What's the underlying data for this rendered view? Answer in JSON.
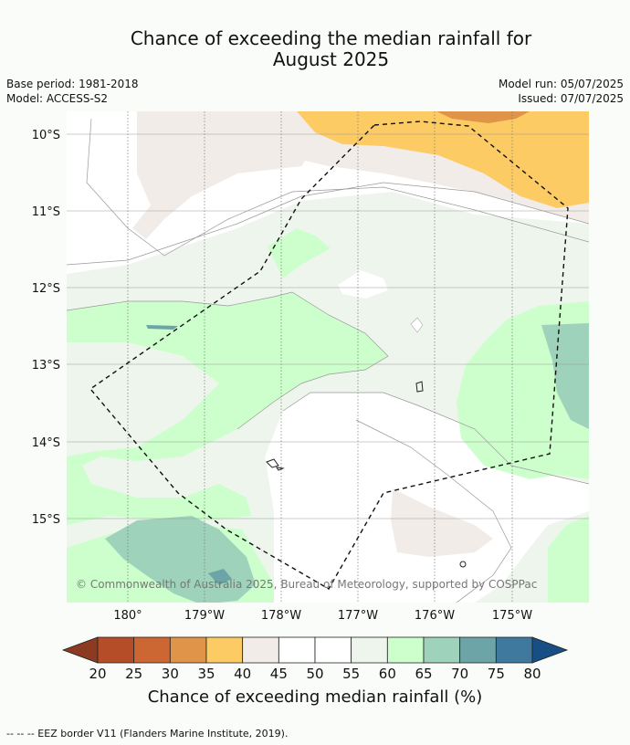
{
  "title_line1": "Chance of exceeding the median rainfall for",
  "title_line2": "August 2025",
  "meta": {
    "base_period": "Base period: 1981-2018",
    "model": "Model: ACCESS-S2",
    "model_run": "Model run: 05/07/2025",
    "issued": "Issued: 07/07/2025"
  },
  "lat_labels": [
    "10°S",
    "11°S",
    "12°S",
    "13°S",
    "14°S",
    "15°S"
  ],
  "lon_labels": [
    "180°",
    "179°W",
    "178°W",
    "177°W",
    "176°W",
    "175°W"
  ],
  "copyright": "© Commonwealth of Australia 2025, Bureau of Meteorology, supported by COSPPac",
  "colorbar": {
    "ticks": [
      "20",
      "25",
      "30",
      "35",
      "40",
      "45",
      "50",
      "55",
      "60",
      "65",
      "70",
      "75",
      "80"
    ],
    "colors": [
      "#8c3a22",
      "#b54d28",
      "#cc6633",
      "#e0944a",
      "#fdcb64",
      "#f2ece8",
      "#ffffff",
      "#ffffff",
      "#edf5ec",
      "#ccffcc",
      "#9ed2bb",
      "#6da4a8",
      "#3f7a9e",
      "#174f85"
    ],
    "label": "Chance of exceeding median rainfall (%)"
  },
  "footnote": "--  --  -- EEZ border V11 (Flanders Marine Institute, 2019)."
}
